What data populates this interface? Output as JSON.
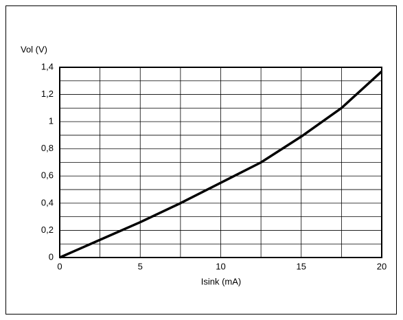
{
  "chart_data": {
    "type": "line",
    "ylabel": "Vol (V)",
    "xlabel": "Isink (mA)",
    "x": [
      0,
      2.5,
      5,
      7.5,
      10,
      12.5,
      15,
      17.5,
      20
    ],
    "series": [
      {
        "color": "#000000",
        "values": [
          0,
          0.13,
          0.26,
          0.4,
          0.55,
          0.7,
          0.89,
          1.1,
          1.37
        ]
      }
    ],
    "xlim": [
      0,
      20
    ],
    "xticks": [
      0,
      5,
      10,
      15,
      20
    ],
    "ylim": [
      0,
      1.4
    ],
    "yticks": [
      0,
      {
        "value": 0.2,
        "label": "0,2"
      },
      {
        "value": 0.4,
        "label": "0,4"
      },
      {
        "value": 0.6,
        "label": "0,6"
      },
      {
        "value": 0.8,
        "label": "0,8"
      },
      1,
      {
        "value": 1.2,
        "label": "1,2"
      },
      {
        "value": 1.4,
        "label": "1,4"
      }
    ],
    "xgrid": [
      2.5,
      7.5,
      12.5,
      17.5
    ],
    "ygrid": [
      0.1,
      0.3,
      0.5,
      0.7,
      0.9,
      1.1,
      1.3
    ],
    "grid": true
  }
}
